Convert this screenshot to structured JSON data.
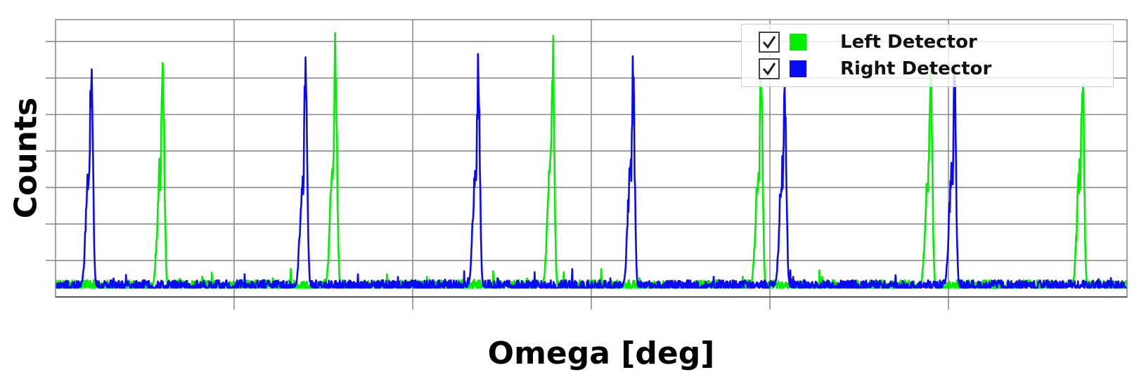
{
  "chart_data": {
    "type": "line",
    "title": "",
    "xlabel": "Omega [deg]",
    "ylabel": "Counts",
    "xlim": [
      0,
      360
    ],
    "ylim": [
      0,
      7.5
    ],
    "x_gridlines": 6,
    "y_gridlines": 7,
    "grid": true,
    "tick_labels_shown": false,
    "legend_position": "top-right",
    "baseline": 0.25,
    "series": [
      {
        "name": "Left Detector",
        "color": "#00ee00",
        "checked": true,
        "peaks": [
          {
            "x": 36,
            "height": 7.0
          },
          {
            "x": 94,
            "height": 7.4
          },
          {
            "x": 167,
            "height": 7.6
          },
          {
            "x": 237,
            "height": 6.5
          },
          {
            "x": 294,
            "height": 6.9
          },
          {
            "x": 345,
            "height": 7.0
          }
        ]
      },
      {
        "name": "Right Detector",
        "color": "#0a0af5",
        "checked": true,
        "peaks": [
          {
            "x": 12,
            "height": 7.0
          },
          {
            "x": 84,
            "height": 7.2
          },
          {
            "x": 142,
            "height": 6.8
          },
          {
            "x": 194,
            "height": 6.6
          },
          {
            "x": 245,
            "height": 6.1
          },
          {
            "x": 302,
            "height": 6.4
          }
        ]
      }
    ]
  }
}
